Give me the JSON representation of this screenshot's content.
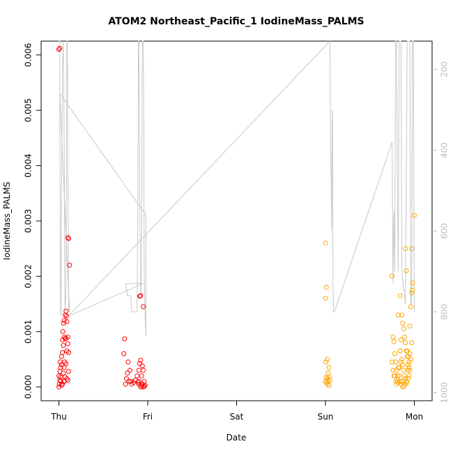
{
  "chart_data": {
    "type": "scatter",
    "title": "ATOM2 Northeast_Pacific_1 IodineMass_PALMS",
    "xlabel": "Date",
    "ylabel": "IodineMass_PALMS",
    "x_ticks": [
      "Thu",
      "Fri",
      "Sat",
      "Sun",
      "Mon"
    ],
    "xlim_days": [
      -0.2,
      4.2
    ],
    "ylim": [
      -0.00025,
      0.00625
    ],
    "y_ticks": [
      "0.000",
      "0.001",
      "0.002",
      "0.003",
      "0.004",
      "0.005",
      "0.006"
    ],
    "right_axis": {
      "label_ticks": [
        "200",
        "400",
        "600",
        "800",
        "1000"
      ],
      "ylim_reversed": [
        1020,
        130
      ],
      "color": "#bdbdbd"
    },
    "grid": false,
    "series": [
      {
        "color": "#ff0000",
        "points": [
          [
            0.0,
            0.0061
          ],
          [
            0.01,
            0.00612
          ],
          [
            0.0,
            0.0
          ],
          [
            0.005,
            5e-05
          ],
          [
            0.01,
            0.00012
          ],
          [
            0.02,
            0.00018
          ],
          [
            0.0,
            0.0002
          ],
          [
            0.01,
            0.00028
          ],
          [
            0.02,
            0.00035
          ],
          [
            0.03,
            0.0004
          ],
          [
            0.015,
            0.00045
          ],
          [
            0.03,
            0.00055
          ],
          [
            0.04,
            0.00062
          ],
          [
            0.05,
            0.00075
          ],
          [
            0.04,
            0.00085
          ],
          [
            0.06,
            0.0009
          ],
          [
            0.045,
            0.001
          ],
          [
            0.05,
            0.00115
          ],
          [
            0.06,
            0.0012
          ],
          [
            0.07,
            0.0013
          ],
          [
            0.08,
            0.00137
          ],
          [
            0.085,
            0.00128
          ],
          [
            0.09,
            0.00118
          ],
          [
            0.07,
            0.00087
          ],
          [
            0.08,
            0.00088
          ],
          [
            0.1,
            0.0009
          ],
          [
            0.1,
            0.00078
          ],
          [
            0.09,
            0.00065
          ],
          [
            0.11,
            0.00062
          ],
          [
            0.065,
            0.00045
          ],
          [
            0.08,
            0.00042
          ],
          [
            0.06,
            0.00035
          ],
          [
            0.05,
            0.00025
          ],
          [
            0.07,
            0.00018
          ],
          [
            0.09,
            0.00015
          ],
          [
            0.06,
            0.0001
          ],
          [
            0.055,
            0.0001
          ],
          [
            0.04,
            5e-05
          ],
          [
            0.03,
            3e-05
          ],
          [
            0.02,
            0.0001
          ],
          [
            0.1,
            0.0027
          ],
          [
            0.11,
            0.00268
          ],
          [
            0.12,
            0.0022
          ],
          [
            0.11,
            0.00028
          ],
          [
            0.1,
            0.00012
          ],
          [
            0.74,
            0.00087
          ],
          [
            0.73,
            0.0006
          ],
          [
            0.78,
            0.00045
          ],
          [
            0.8,
            0.0003
          ],
          [
            0.77,
            0.00025
          ],
          [
            0.76,
            0.00015
          ],
          [
            0.79,
            0.0001
          ],
          [
            0.81,
            0.0001
          ],
          [
            0.75,
            5e-05
          ],
          [
            0.82,
            5e-05
          ],
          [
            0.84,
            8e-05
          ],
          [
            0.86,
            0.00012
          ],
          [
            0.88,
            0.0002
          ],
          [
            0.9,
            0.0003
          ],
          [
            0.91,
            0.00042
          ],
          [
            0.92,
            0.00048
          ],
          [
            0.94,
            0.00038
          ],
          [
            0.95,
            0.0003
          ],
          [
            0.93,
            0.0002
          ],
          [
            0.9,
            5e-05
          ],
          [
            0.92,
            0.0
          ],
          [
            0.93,
            2e-05
          ],
          [
            0.95,
            0.0
          ],
          [
            0.96,
            1e-05
          ],
          [
            0.94,
            5e-05
          ],
          [
            0.91,
            0.00164
          ],
          [
            0.92,
            0.00165
          ],
          [
            0.95,
            0.00145
          ],
          [
            0.89,
            8e-05
          ],
          [
            0.9,
            0.0001
          ],
          [
            0.97,
            3e-05
          ],
          [
            0.96,
            0.0001
          ]
        ]
      },
      {
        "color": "#ffa500",
        "points": [
          [
            3.0,
            0.0026
          ],
          [
            3.01,
            0.0018
          ],
          [
            3.0,
            0.0016
          ],
          [
            3.005,
            0.00045
          ],
          [
            3.02,
            0.0005
          ],
          [
            3.04,
            0.00035
          ],
          [
            3.03,
            0.00025
          ],
          [
            3.01,
            0.00018
          ],
          [
            3.02,
            0.00015
          ],
          [
            3.04,
            0.00018
          ],
          [
            3.05,
            0.00012
          ],
          [
            3.03,
            0.0001
          ],
          [
            3.015,
            8e-05
          ],
          [
            3.02,
            5e-05
          ],
          [
            3.04,
            3e-05
          ],
          [
            3.0,
            0.0001
          ],
          [
            3.75,
            0.002
          ],
          [
            3.76,
            0.0009
          ],
          [
            3.77,
            0.00082
          ],
          [
            3.78,
            0.0006
          ],
          [
            3.75,
            0.00045
          ],
          [
            3.76,
            0.0003
          ],
          [
            3.77,
            0.0002
          ],
          [
            3.79,
            0.0001
          ],
          [
            3.8,
            5e-05
          ],
          [
            3.82,
            8e-05
          ],
          [
            3.84,
            0.0001
          ],
          [
            3.81,
            0.0002
          ],
          [
            3.83,
            0.00035
          ],
          [
            3.85,
            0.00045
          ],
          [
            3.86,
            0.0005
          ],
          [
            3.84,
            0.00065
          ],
          [
            3.85,
            0.00085
          ],
          [
            3.82,
            0.0013
          ],
          [
            3.84,
            0.00165
          ],
          [
            3.86,
            0.0013
          ],
          [
            3.87,
            0.00115
          ],
          [
            3.88,
            0.00105
          ],
          [
            3.89,
            0.0009
          ],
          [
            3.9,
            0.0008
          ],
          [
            3.91,
            0.00065
          ],
          [
            3.92,
            0.00055
          ],
          [
            3.87,
            0.0004
          ],
          [
            3.88,
            0.0003
          ],
          [
            3.89,
            0.0002
          ],
          [
            3.9,
            0.00015
          ],
          [
            3.86,
            0.0001
          ],
          [
            3.85,
            5e-05
          ],
          [
            3.87,
            0.0
          ],
          [
            3.88,
            2e-05
          ],
          [
            3.9,
            5e-05
          ],
          [
            3.91,
            0.0001
          ],
          [
            3.92,
            8e-05
          ],
          [
            3.93,
            0.00015
          ],
          [
            3.94,
            0.0002
          ],
          [
            3.95,
            0.0003
          ],
          [
            3.93,
            0.0004
          ],
          [
            3.96,
            0.0005
          ],
          [
            3.95,
            0.0006
          ],
          [
            3.97,
            0.0008
          ],
          [
            3.95,
            0.0011
          ],
          [
            3.96,
            0.00145
          ],
          [
            3.97,
            0.0017
          ],
          [
            3.98,
            0.00175
          ],
          [
            3.98,
            0.00188
          ],
          [
            3.97,
            0.0025
          ],
          [
            4.0,
            0.0031
          ],
          [
            3.9,
            0.0025
          ],
          [
            3.91,
            0.0021
          ],
          [
            3.92,
            0.00065
          ],
          [
            3.93,
            0.00055
          ],
          [
            3.94,
            0.00045
          ],
          [
            3.83,
            0.0002
          ],
          [
            3.8,
            0.0003
          ],
          [
            3.79,
            0.00045
          ],
          [
            3.78,
            0.0002
          ],
          [
            3.81,
            0.00012
          ],
          [
            3.82,
            0.00035
          ],
          [
            3.93,
            0.0003
          ],
          [
            3.94,
            0.00035
          ]
        ]
      }
    ],
    "altitude_track": {
      "color": "#c8c8c8",
      "points": [
        [
          0.0,
          130
        ],
        [
          0.01,
          130
        ],
        [
          0.01,
          300
        ],
        [
          0.015,
          600
        ],
        [
          0.02,
          800
        ],
        [
          0.025,
          810
        ],
        [
          0.03,
          500
        ],
        [
          0.04,
          200
        ],
        [
          0.05,
          130
        ],
        [
          0.06,
          400
        ],
        [
          0.065,
          700
        ],
        [
          0.07,
          800
        ],
        [
          0.08,
          750
        ],
        [
          0.09,
          130
        ],
        [
          0.095,
          130
        ],
        [
          0.1,
          400
        ],
        [
          0.11,
          800
        ],
        [
          0.12,
          800
        ],
        [
          0.01,
          260
        ],
        [
          0.98,
          560
        ],
        [
          0.98,
          860
        ],
        [
          0.97,
          810
        ],
        [
          0.96,
          700
        ],
        [
          0.955,
          300
        ],
        [
          0.95,
          130
        ],
        [
          0.94,
          130
        ],
        [
          0.935,
          400
        ],
        [
          0.93,
          700
        ],
        [
          0.92,
          760
        ],
        [
          0.91,
          500
        ],
        [
          0.9,
          130
        ],
        [
          0.895,
          130
        ],
        [
          0.89,
          500
        ],
        [
          0.88,
          800
        ],
        [
          0.82,
          800
        ],
        [
          0.81,
          760
        ],
        [
          0.77,
          760
        ],
        [
          0.76,
          740
        ],
        [
          0.75,
          730
        ],
        [
          0.75,
          730
        ],
        [
          0.95,
          730
        ],
        [
          0.11,
          810
        ],
        [
          3.05,
          130
        ],
        [
          3.06,
          400
        ],
        [
          3.07,
          600
        ],
        [
          3.075,
          330
        ],
        [
          3.08,
          300
        ],
        [
          3.085,
          730
        ],
        [
          3.09,
          800
        ],
        [
          3.1,
          800
        ],
        [
          3.75,
          380
        ],
        [
          3.76,
          730
        ],
        [
          3.77,
          550
        ],
        [
          3.78,
          700
        ],
        [
          3.79,
          130
        ],
        [
          3.8,
          130
        ],
        [
          3.81,
          500
        ],
        [
          3.82,
          700
        ],
        [
          3.83,
          130
        ],
        [
          3.85,
          130
        ],
        [
          3.86,
          700
        ],
        [
          3.9,
          780
        ],
        [
          3.92,
          130
        ],
        [
          3.95,
          130
        ],
        [
          3.96,
          780
        ],
        [
          3.97,
          780
        ],
        [
          3.98,
          130
        ],
        [
          3.99,
          130
        ],
        [
          4.0,
          800
        ],
        [
          4.0,
          790
        ]
      ]
    }
  }
}
